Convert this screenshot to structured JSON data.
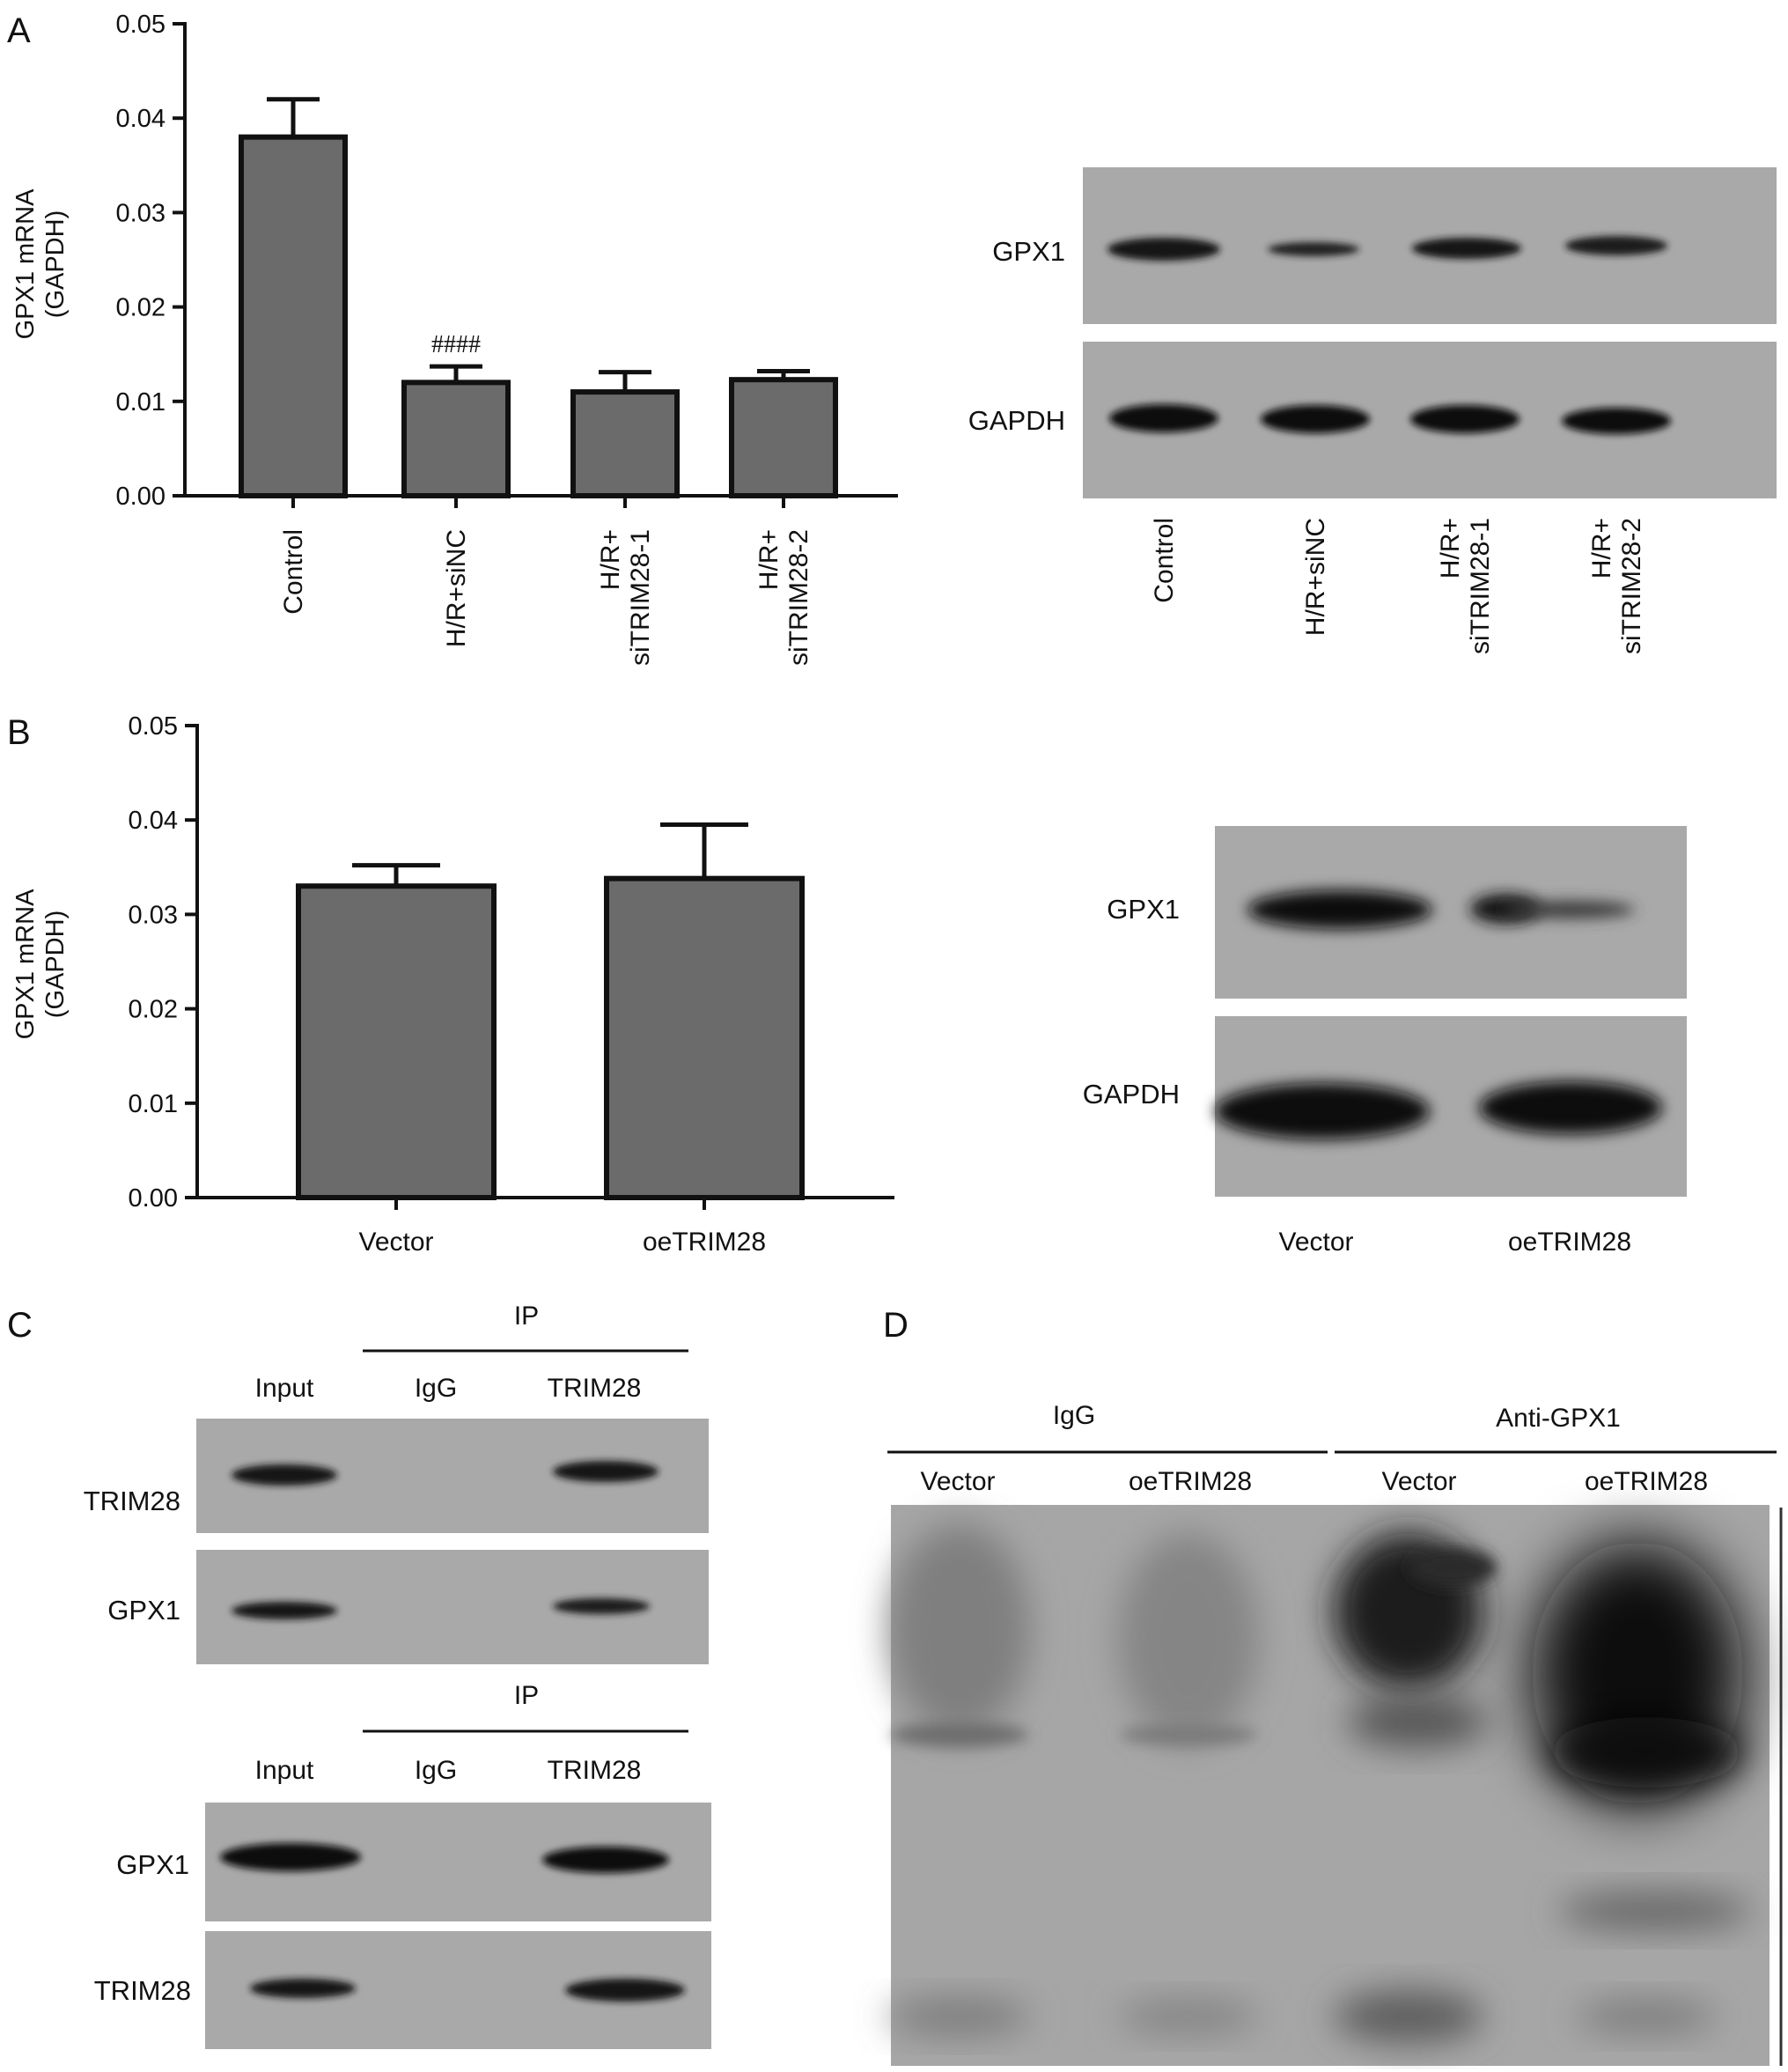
{
  "panels": {
    "a": "A",
    "b": "B",
    "c": "C",
    "d": "D"
  },
  "chart_data": [
    {
      "type": "bar",
      "panel": "A",
      "categories": [
        "Control",
        "H/R+siNC",
        "H/R+\nsiTRIM28-1",
        "H/R+\nsiTRIM28-2"
      ],
      "values": [
        0.038,
        0.012,
        0.011,
        0.0123
      ],
      "errors": [
        0.004,
        0.0017,
        0.0021,
        0.0009
      ],
      "annotations": [
        "",
        "####",
        "",
        ""
      ],
      "ylabel": "GPX1 mRNA\n(GAPDH)",
      "ylim": [
        0,
        0.05
      ],
      "yticks": [
        "0.00",
        "0.01",
        "0.02",
        "0.03",
        "0.04",
        "0.05"
      ],
      "grid": false,
      "bar_color": "#6b6b6b"
    },
    {
      "type": "bar",
      "panel": "B",
      "categories": [
        "Vector",
        "oeTRIM28"
      ],
      "values": [
        0.033,
        0.0338
      ],
      "errors": [
        0.0022,
        0.0057
      ],
      "ylabel": "GPX1 mRNA\n(GAPDH)",
      "ylim": [
        0,
        0.05
      ],
      "yticks": [
        "0.00",
        "0.01",
        "0.02",
        "0.03",
        "0.04",
        "0.05"
      ],
      "grid": false,
      "bar_color": "#6b6b6b"
    }
  ],
  "blots": {
    "a": {
      "rows": [
        "GPX1",
        "GAPDH"
      ],
      "lanes": [
        "Control",
        "H/R+siNC",
        "H/R+\nsiTRIM28-1",
        "H/R+\nsiTRIM28-2"
      ]
    },
    "b": {
      "rows": [
        "GPX1",
        "GAPDH"
      ],
      "lanes": [
        "Vector",
        "oeTRIM28"
      ]
    },
    "c_top": {
      "group": "IP",
      "lanes": [
        "Input",
        "IgG",
        "TRIM28"
      ],
      "rows": [
        "TRIM28",
        "GPX1"
      ]
    },
    "c_bottom": {
      "group": "IP",
      "lanes": [
        "Input",
        "IgG",
        "TRIM28"
      ],
      "rows": [
        "GPX1",
        "TRIM28"
      ]
    },
    "d": {
      "groups": [
        "IgG",
        "Anti-GPX1"
      ],
      "lanes": [
        "Vector",
        "oeTRIM28",
        "Vector",
        "oeTRIM28"
      ]
    }
  }
}
